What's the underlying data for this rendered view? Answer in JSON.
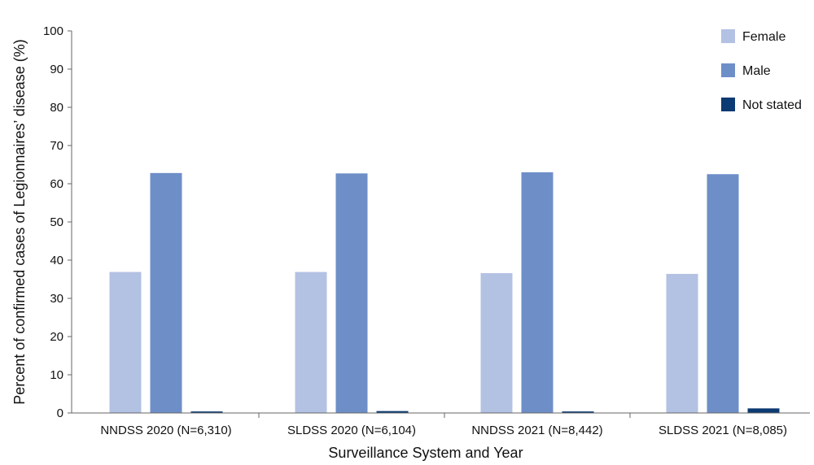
{
  "chart_data": {
    "type": "bar",
    "xlabel": "Surveillance System and Year",
    "ylabel": "Percent of confirmed cases of Legionnaires’ disease  (%)",
    "ylim": [
      0,
      100
    ],
    "yticks": [
      0,
      10,
      20,
      30,
      40,
      50,
      60,
      70,
      80,
      90,
      100
    ],
    "categories": [
      "NNDSS 2020 (N=6,310)",
      "SLDSS 2020 (N=6,104)",
      "NNDSS 2021 (N=8,442)",
      "SLDSS 2021 (N=8,085)"
    ],
    "series": [
      {
        "name": "Female",
        "color": "#b3c1e3",
        "values": [
          36.9,
          36.9,
          36.6,
          36.4
        ]
      },
      {
        "name": "Male",
        "color": "#6e8ec8",
        "values": [
          62.8,
          62.7,
          63.0,
          62.5
        ]
      },
      {
        "name": "Not stated",
        "color": "#0c3a72",
        "values": [
          0.4,
          0.5,
          0.4,
          1.2
        ]
      }
    ],
    "legend_position": "top-right",
    "grid": false
  }
}
